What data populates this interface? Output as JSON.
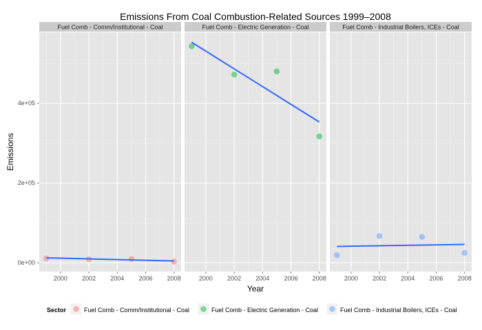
{
  "chart_data": {
    "type": "scatter",
    "title": "Emissions From Coal Combustion-Related Sources 1999–2008",
    "xlabel": "Year",
    "ylabel": "Emissions",
    "xlim": [
      1998.5,
      2008.5
    ],
    "ylim": [
      -22000,
      578000
    ],
    "x_ticks": [
      2000,
      2002,
      2004,
      2006,
      2008
    ],
    "y_ticks": [
      0,
      200000,
      400000
    ],
    "y_tick_labels": [
      "0e+00",
      "2e+05",
      "4e+05"
    ],
    "grid": true,
    "legend": {
      "title": "Sector",
      "position": "bottom"
    },
    "panels": [
      {
        "name": "Fuel Comb - Comm/Institutional - Coal",
        "color": "#F8766D",
        "x": [
          1999,
          2002,
          2005,
          2008
        ],
        "y": [
          11000,
          9000,
          9500,
          3000
        ],
        "trend": {
          "x": [
            1999,
            2008
          ],
          "y": [
            12500,
            4500
          ]
        }
      },
      {
        "name": "Fuel Comb - Electric Generation - Coal",
        "color": "#00BA38",
        "x": [
          1999,
          2002,
          2005,
          2008
        ],
        "y": [
          543000,
          472000,
          480000,
          317000
        ],
        "trend": {
          "x": [
            1999,
            2008
          ],
          "y": [
            553000,
            353000
          ]
        }
      },
      {
        "name": "Fuel Comb - Industrial Boilers, ICEs - Coal",
        "color": "#619CFF",
        "x": [
          1999,
          2002,
          2005,
          2008
        ],
        "y": [
          19000,
          67000,
          65000,
          25000
        ],
        "trend": {
          "x": [
            1999,
            2008
          ],
          "y": [
            41000,
            46000
          ]
        }
      }
    ]
  },
  "colors": {
    "panel_background": "#E5E5E5",
    "strip_background": "#CCCCCC",
    "grid_major": "#FFFFFF",
    "grid_minor": "#F2F2F2",
    "trend_line": "#3366FF"
  }
}
